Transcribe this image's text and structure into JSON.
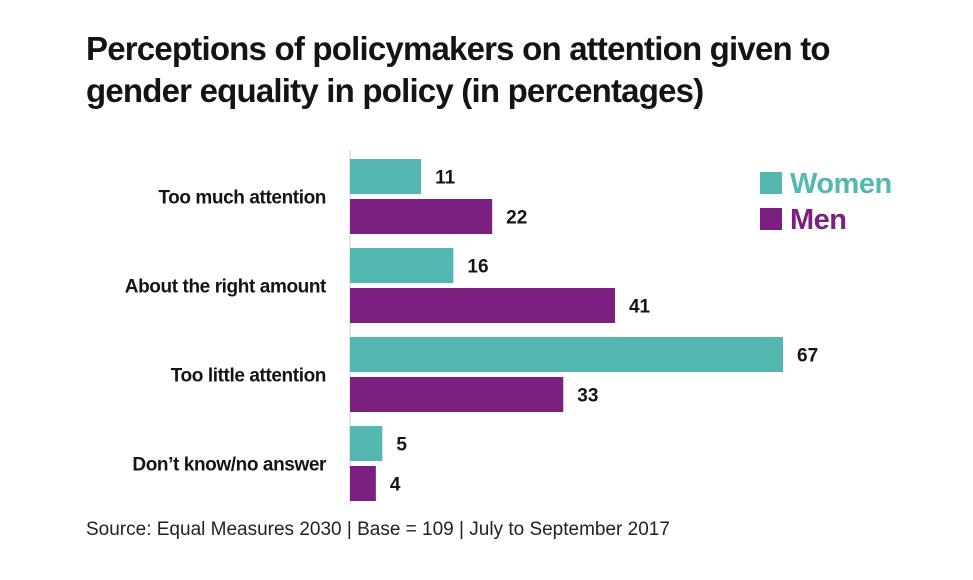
{
  "chart_data": {
    "type": "bar",
    "orientation": "horizontal",
    "title": "Perceptions of policymakers on attention given to gender equality in policy (in percentages)",
    "categories": [
      "Too much attention",
      "About the right amount",
      "Too little attention",
      "Don’t know/no answer"
    ],
    "series": [
      {
        "name": "Women",
        "color": "#55b8b0",
        "values": [
          11,
          16,
          67,
          5
        ]
      },
      {
        "name": "Men",
        "color": "#7b1f80",
        "values": [
          22,
          41,
          33,
          4
        ]
      }
    ],
    "xlim": [
      0,
      67
    ],
    "grid": false,
    "legend": "top-right"
  },
  "source": "Source:  Equal Measures 2030  |  Base = 109  |  July to September 2017"
}
